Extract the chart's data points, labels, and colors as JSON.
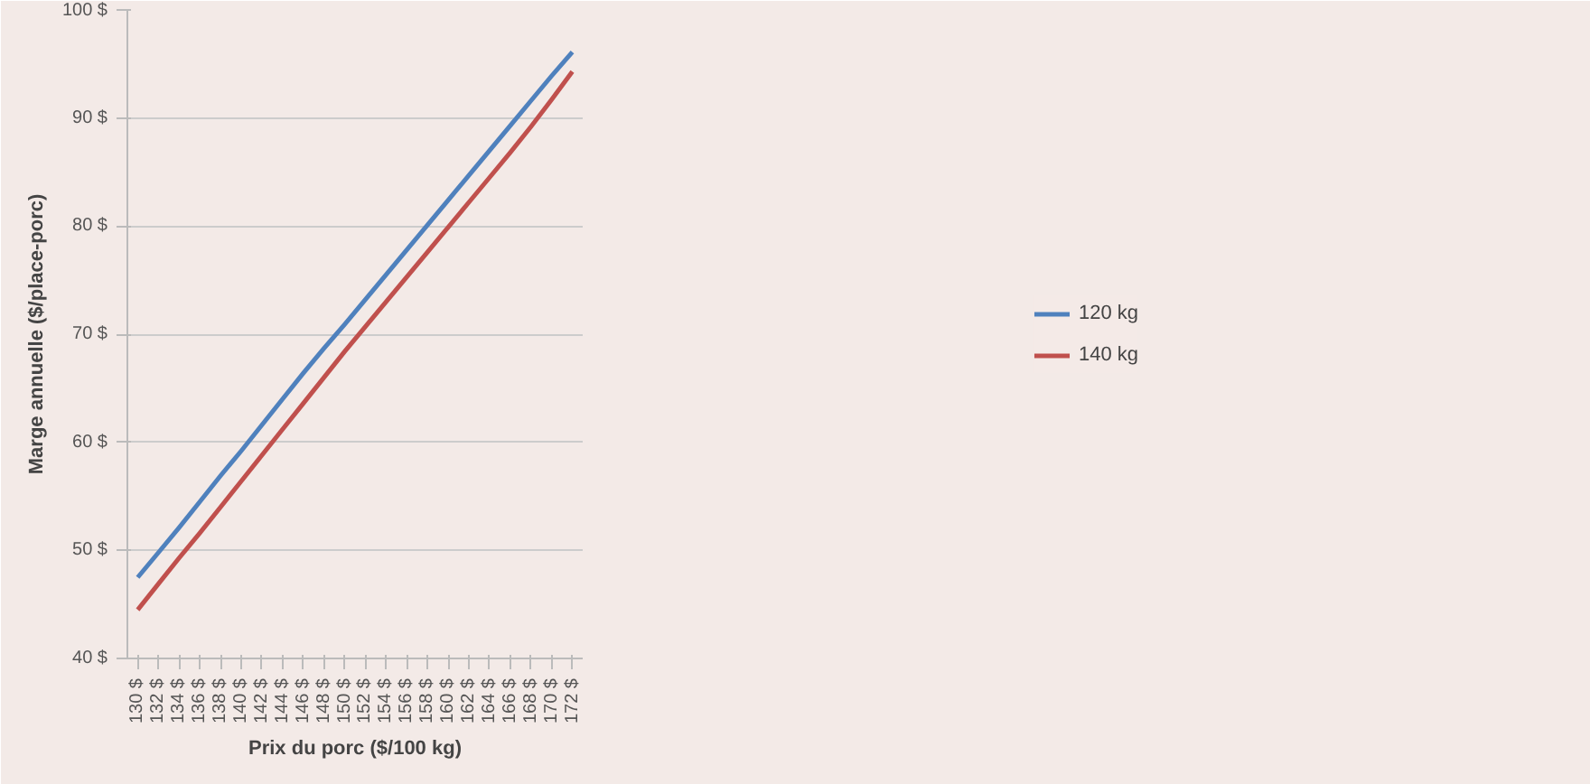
{
  "chart_data": {
    "type": "line",
    "xlabel": "Prix du porc ($/100 kg)",
    "ylabel": "Marge annuelle ($/place-porc)",
    "categories": [
      "130 $",
      "132 $",
      "134 $",
      "136 $",
      "138 $",
      "140 $",
      "142 $",
      "144 $",
      "146 $",
      "148 $",
      "150 $",
      "152 $",
      "154 $",
      "156 $",
      "158 $",
      "160 $",
      "162 $",
      "164 $",
      "166 $",
      "168 $",
      "170 $",
      "172 $"
    ],
    "series": [
      {
        "name": "120 kg",
        "color": "#4f81bd",
        "values": [
          47.5,
          49.8,
          52.1,
          54.5,
          56.9,
          59.2,
          61.6,
          64.0,
          66.4,
          68.7,
          70.9,
          73.2,
          75.5,
          77.8,
          80.1,
          82.4,
          84.7,
          87.0,
          89.3,
          91.6,
          93.9,
          96.1
        ]
      },
      {
        "name": "140 kg",
        "color": "#c0504d",
        "values": [
          44.5,
          46.9,
          49.3,
          51.6,
          54.0,
          56.4,
          58.8,
          61.2,
          63.6,
          66.0,
          68.4,
          70.7,
          73.0,
          75.3,
          77.6,
          79.9,
          82.2,
          84.5,
          86.8,
          89.2,
          91.7,
          94.3
        ]
      }
    ],
    "ylim": [
      40,
      100
    ],
    "yticks": [
      {
        "value": 40,
        "label": "40 $"
      },
      {
        "value": 50,
        "label": "50 $"
      },
      {
        "value": 60,
        "label": "60 $"
      },
      {
        "value": 70,
        "label": "70 $"
      },
      {
        "value": 80,
        "label": "80 $"
      },
      {
        "value": 90,
        "label": "90 $"
      },
      {
        "value": 100,
        "label": "100 $"
      }
    ],
    "grid": "y",
    "legend": "right",
    "line_style": "solid",
    "marker": "none"
  }
}
